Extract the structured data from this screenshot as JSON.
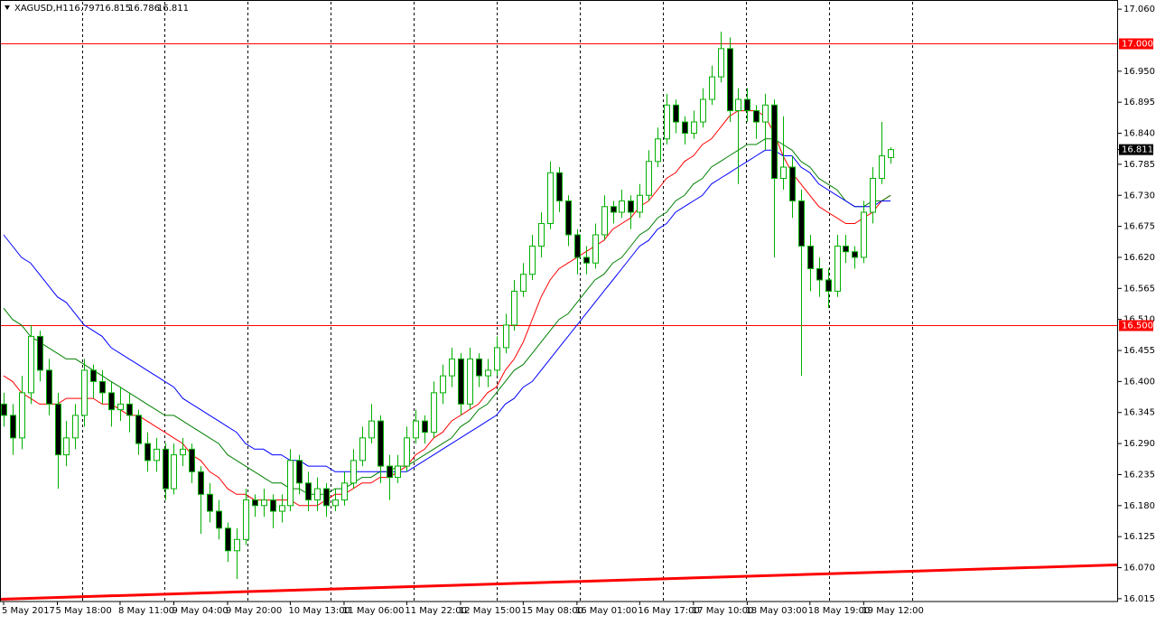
{
  "chart_data": {
    "type": "candlestick",
    "title": "XAGUSD,H1",
    "up_color": "#00b000",
    "down_color": "#000000",
    "grid": true,
    "ylim": [
      16.01,
      17.073
    ],
    "yticks": [
      {
        "value": 17.06,
        "label": "17.060"
      },
      {
        "value": 16.95,
        "label": "16.950"
      },
      16.895,
      {
        "value": 16.84,
        "label": "16.840"
      },
      16.785,
      {
        "value": 16.73,
        "label": "16.730"
      },
      16.675,
      {
        "value": 16.62,
        "label": "16.620"
      },
      16.565,
      {
        "value": 16.51,
        "label": "16.510"
      },
      16.455,
      {
        "value": 16.4,
        "label": "16.400"
      },
      16.345,
      {
        "value": 16.29,
        "label": "16.290"
      },
      16.235,
      {
        "value": 16.18,
        "label": "16.180"
      },
      16.125,
      {
        "value": 16.07,
        "label": "16.070"
      },
      16.015
    ],
    "categories": [
      "5 May 2017",
      null,
      null,
      null,
      null,
      null,
      "5 May 18:00",
      null,
      null,
      null,
      null,
      null,
      null,
      "8 May 11:00",
      null,
      null,
      null,
      null,
      null,
      "9 May 04:00",
      null,
      null,
      null,
      null,
      null,
      "9 May 20:00",
      null,
      null,
      null,
      null,
      null,
      null,
      "10 May 13:00",
      null,
      null,
      null,
      null,
      null,
      "11 May 06:00",
      null,
      null,
      null,
      null,
      null,
      null,
      "11 May 22:00",
      null,
      null,
      null,
      null,
      null,
      "12 May 15:00",
      null,
      null,
      null,
      null,
      null,
      null,
      "15 May 08:00",
      null,
      null,
      null,
      null,
      null,
      "16 May 01:00",
      null,
      null,
      null,
      null,
      null,
      null,
      "16 May 17:00",
      null,
      null,
      null,
      null,
      null,
      "17 May 10:00",
      null,
      null,
      null,
      null,
      null,
      "18 May 03:00",
      null,
      null,
      null,
      null,
      null,
      null,
      "18 May 19:00",
      null,
      null,
      null,
      null,
      null,
      "19 May 12:00",
      null,
      null,
      null
    ],
    "open": [
      16.36,
      16.34,
      16.3,
      16.38,
      16.48,
      16.42,
      16.36,
      16.27,
      16.3,
      16.34,
      16.42,
      16.4,
      16.38,
      16.35,
      16.36,
      16.34,
      16.29,
      16.26,
      16.28,
      16.21,
      16.27,
      16.28,
      16.24,
      16.2,
      16.17,
      16.14,
      16.1,
      16.12,
      16.19,
      16.18,
      16.19,
      16.17,
      16.18,
      16.26,
      16.22,
      16.19,
      16.21,
      16.18,
      16.19,
      16.22,
      16.26,
      16.3,
      16.33,
      16.25,
      16.23,
      16.25,
      16.3,
      16.33,
      16.31,
      16.38,
      16.41,
      16.44,
      16.36,
      16.44,
      16.41,
      16.42,
      16.46,
      16.5,
      16.56,
      16.59,
      16.64,
      16.68,
      16.77,
      16.72,
      16.66,
      16.62,
      16.61,
      16.66,
      16.71,
      16.7,
      16.72,
      16.7,
      16.73,
      16.79,
      16.83,
      16.89,
      16.86,
      16.84,
      16.86,
      16.9,
      16.94,
      16.99,
      16.88,
      16.9,
      16.88,
      16.86,
      16.89,
      16.76,
      16.78,
      16.72,
      16.64,
      16.6,
      16.58,
      16.56,
      16.64,
      16.63,
      16.62,
      16.7,
      16.76,
      16.797
    ],
    "high": [
      16.38,
      16.36,
      16.41,
      16.5,
      16.49,
      16.44,
      16.38,
      16.33,
      16.36,
      16.44,
      16.43,
      16.42,
      16.4,
      16.39,
      16.38,
      16.35,
      16.31,
      16.3,
      16.29,
      16.29,
      16.3,
      16.29,
      16.25,
      16.22,
      16.19,
      16.15,
      16.14,
      16.21,
      16.2,
      16.21,
      16.2,
      16.2,
      16.28,
      16.27,
      16.24,
      16.23,
      16.22,
      16.21,
      16.24,
      16.28,
      16.32,
      16.36,
      16.34,
      16.27,
      16.27,
      16.32,
      16.35,
      16.34,
      16.4,
      16.43,
      16.46,
      16.45,
      16.46,
      16.45,
      16.44,
      16.48,
      16.52,
      16.58,
      16.61,
      16.66,
      16.7,
      16.79,
      16.78,
      16.73,
      16.67,
      16.64,
      16.68,
      16.73,
      16.72,
      16.74,
      16.73,
      16.75,
      16.81,
      16.85,
      16.91,
      16.9,
      16.87,
      16.88,
      16.92,
      16.96,
      17.02,
      17.01,
      16.92,
      16.92,
      16.89,
      16.91,
      16.9,
      16.87,
      16.8,
      16.74,
      16.66,
      16.62,
      16.6,
      16.66,
      16.66,
      16.64,
      16.72,
      16.78,
      16.86,
      16.815
    ],
    "low": [
      16.32,
      16.27,
      16.28,
      16.36,
      16.4,
      16.34,
      16.21,
      16.25,
      16.28,
      16.32,
      16.37,
      16.36,
      16.32,
      16.33,
      16.31,
      16.27,
      16.24,
      16.24,
      16.19,
      16.2,
      16.25,
      16.22,
      16.13,
      16.15,
      16.12,
      16.08,
      16.05,
      16.11,
      16.16,
      16.16,
      16.14,
      16.15,
      16.17,
      16.2,
      16.17,
      16.17,
      16.16,
      16.17,
      16.18,
      16.21,
      16.25,
      16.29,
      16.22,
      16.19,
      16.22,
      16.24,
      16.29,
      16.29,
      16.3,
      16.36,
      16.39,
      16.34,
      16.35,
      16.39,
      16.39,
      16.41,
      16.45,
      16.49,
      16.55,
      16.58,
      16.62,
      16.67,
      16.7,
      16.64,
      16.59,
      16.59,
      16.6,
      16.65,
      16.68,
      16.69,
      16.67,
      16.69,
      16.72,
      16.78,
      16.82,
      16.84,
      16.82,
      16.83,
      16.85,
      16.89,
      16.93,
      16.86,
      16.75,
      16.86,
      16.83,
      16.81,
      16.62,
      16.74,
      16.69,
      16.41,
      16.56,
      16.55,
      16.53,
      16.55,
      16.61,
      16.6,
      16.61,
      16.68,
      16.75,
      16.786
    ],
    "close": [
      16.34,
      16.3,
      16.38,
      16.48,
      16.42,
      16.36,
      16.27,
      16.3,
      16.34,
      16.42,
      16.4,
      16.38,
      16.35,
      16.36,
      16.34,
      16.29,
      16.26,
      16.28,
      16.21,
      16.27,
      16.28,
      16.24,
      16.2,
      16.17,
      16.14,
      16.1,
      16.12,
      16.19,
      16.18,
      16.19,
      16.17,
      16.18,
      16.26,
      16.22,
      16.19,
      16.21,
      16.18,
      16.19,
      16.22,
      16.26,
      16.3,
      16.33,
      16.25,
      16.23,
      16.25,
      16.3,
      16.33,
      16.31,
      16.38,
      16.41,
      16.44,
      16.36,
      16.44,
      16.41,
      16.42,
      16.46,
      16.5,
      16.56,
      16.59,
      16.64,
      16.68,
      16.77,
      16.72,
      16.66,
      16.62,
      16.61,
      16.66,
      16.71,
      16.7,
      16.72,
      16.7,
      16.73,
      16.79,
      16.83,
      16.89,
      16.86,
      16.84,
      16.86,
      16.9,
      16.94,
      16.99,
      16.88,
      16.9,
      16.88,
      16.86,
      16.89,
      16.76,
      16.78,
      16.72,
      16.64,
      16.6,
      16.58,
      16.56,
      16.64,
      16.63,
      16.62,
      16.7,
      16.76,
      16.8,
      16.811
    ],
    "series": [
      {
        "color": "#ff0000",
        "values": [
          16.41,
          16.4,
          16.38,
          16.37,
          16.36,
          16.36,
          16.36,
          16.37,
          16.37,
          16.37,
          16.37,
          16.36,
          16.36,
          16.35,
          16.34,
          16.34,
          16.33,
          16.32,
          16.31,
          16.3,
          16.29,
          16.27,
          16.26,
          16.24,
          16.23,
          16.21,
          16.2,
          16.2,
          16.19,
          16.19,
          16.19,
          16.19,
          16.19,
          16.18,
          16.18,
          16.18,
          16.19,
          16.2,
          16.2,
          16.21,
          16.22,
          16.22,
          16.23,
          16.23,
          16.24,
          16.25,
          16.27,
          16.28,
          16.3,
          16.31,
          16.33,
          16.34,
          16.35,
          16.36,
          16.38,
          16.39,
          16.42,
          16.44,
          16.47,
          16.51,
          16.55,
          16.58,
          16.6,
          16.61,
          16.62,
          16.63,
          16.64,
          16.65,
          16.67,
          16.68,
          16.69,
          16.71,
          16.72,
          16.74,
          16.76,
          16.77,
          16.79,
          16.8,
          16.82,
          16.83,
          16.85,
          16.87,
          16.88,
          16.88,
          16.88,
          16.87,
          16.84,
          16.8,
          16.77,
          16.75,
          16.73,
          16.71,
          16.7,
          16.69,
          16.68,
          16.68,
          16.69,
          16.7,
          16.72,
          16.73
        ]
      },
      {
        "color": "#008000",
        "values": [
          16.53,
          16.51,
          16.5,
          16.48,
          16.47,
          16.46,
          16.45,
          16.44,
          16.44,
          16.43,
          16.42,
          16.41,
          16.4,
          16.39,
          16.38,
          16.37,
          16.36,
          16.35,
          16.34,
          16.34,
          16.33,
          16.32,
          16.31,
          16.3,
          16.29,
          16.27,
          16.26,
          16.25,
          16.24,
          16.23,
          16.22,
          16.22,
          16.21,
          16.21,
          16.2,
          16.2,
          16.2,
          16.21,
          16.21,
          16.22,
          16.23,
          16.23,
          16.24,
          16.24,
          16.25,
          16.25,
          16.26,
          16.27,
          16.28,
          16.29,
          16.3,
          16.32,
          16.33,
          16.35,
          16.36,
          16.38,
          16.4,
          16.42,
          16.43,
          16.45,
          16.47,
          16.49,
          16.51,
          16.52,
          16.54,
          16.56,
          16.58,
          16.59,
          16.61,
          16.62,
          16.64,
          16.66,
          16.67,
          16.69,
          16.7,
          16.72,
          16.73,
          16.75,
          16.76,
          16.78,
          16.79,
          16.8,
          16.81,
          16.82,
          16.82,
          16.83,
          16.83,
          16.82,
          16.81,
          16.79,
          16.78,
          16.76,
          16.75,
          16.74,
          16.72,
          16.71,
          16.71,
          16.72,
          16.72,
          16.73
        ]
      },
      {
        "color": "#0000ff",
        "values": [
          16.66,
          16.64,
          16.62,
          16.61,
          16.59,
          16.57,
          16.55,
          16.54,
          16.52,
          16.5,
          16.49,
          16.48,
          16.46,
          16.45,
          16.44,
          16.43,
          16.42,
          16.41,
          16.4,
          16.39,
          16.37,
          16.36,
          16.35,
          16.34,
          16.33,
          16.32,
          16.31,
          16.29,
          16.28,
          16.28,
          16.27,
          16.27,
          16.26,
          16.26,
          16.25,
          16.25,
          16.25,
          16.24,
          16.24,
          16.24,
          16.24,
          16.24,
          16.24,
          16.24,
          16.24,
          16.24,
          16.25,
          16.26,
          16.27,
          16.28,
          16.29,
          16.3,
          16.31,
          16.32,
          16.33,
          16.34,
          16.36,
          16.37,
          16.39,
          16.4,
          16.42,
          16.44,
          16.46,
          16.48,
          16.5,
          16.52,
          16.54,
          16.56,
          16.58,
          16.6,
          16.62,
          16.64,
          16.65,
          16.67,
          16.68,
          16.7,
          16.71,
          16.72,
          16.73,
          16.75,
          16.76,
          16.77,
          16.78,
          16.79,
          16.8,
          16.81,
          16.81,
          16.8,
          16.8,
          16.78,
          16.77,
          16.75,
          16.74,
          16.73,
          16.72,
          16.71,
          16.71,
          16.71,
          16.72,
          16.72
        ]
      }
    ],
    "trendline": {
      "color": "#ff0000",
      "values": [
        16.014,
        16.075
      ]
    },
    "levels": {
      "color": "#ff0000",
      "values": [
        17.0,
        16.5
      ],
      "value_labels": [
        "17.000",
        "16.500"
      ]
    },
    "last_price": {
      "color": "#000000",
      "value": 16.811
    }
  }
}
